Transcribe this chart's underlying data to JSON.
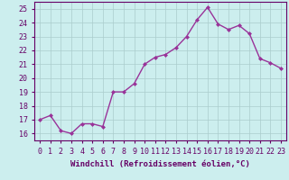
{
  "x": [
    0,
    1,
    2,
    3,
    4,
    5,
    6,
    7,
    8,
    9,
    10,
    11,
    12,
    13,
    14,
    15,
    16,
    17,
    18,
    19,
    20,
    21,
    22,
    23
  ],
  "y": [
    17.0,
    17.3,
    16.2,
    16.0,
    16.7,
    16.7,
    16.5,
    19.0,
    19.0,
    19.6,
    21.0,
    21.5,
    21.7,
    22.2,
    23.0,
    24.2,
    25.1,
    23.9,
    23.5,
    23.8,
    23.2,
    21.4,
    21.1,
    20.7
  ],
  "line_color": "#993399",
  "marker": "D",
  "marker_size": 2,
  "bg_color": "#cceeee",
  "grid_color": "#aacccc",
  "xlabel": "Windchill (Refroidissement éolien,°C)",
  "xlabel_fontsize": 6.5,
  "ylim": [
    15.5,
    25.5
  ],
  "yticks": [
    16,
    17,
    18,
    19,
    20,
    21,
    22,
    23,
    24,
    25
  ],
  "xticks": [
    0,
    1,
    2,
    3,
    4,
    5,
    6,
    7,
    8,
    9,
    10,
    11,
    12,
    13,
    14,
    15,
    16,
    17,
    18,
    19,
    20,
    21,
    22,
    23
  ],
  "tick_fontsize": 6.0,
  "spine_color": "#660066",
  "line_width": 1.0
}
